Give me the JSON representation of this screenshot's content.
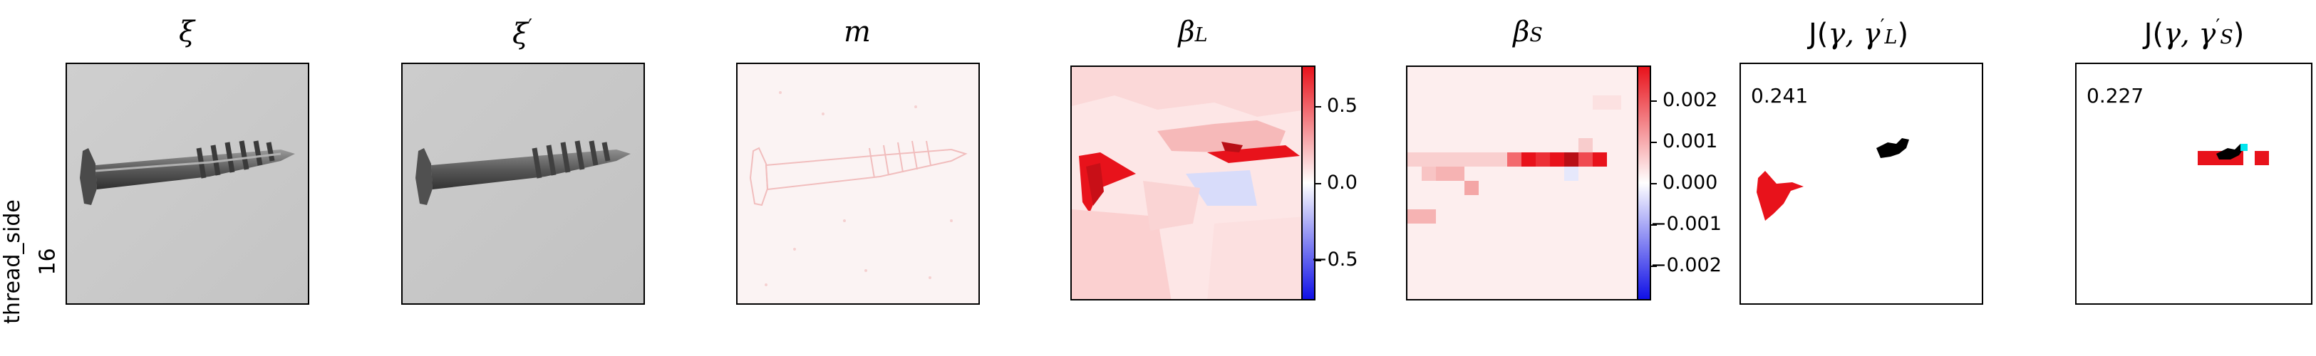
{
  "row_label": {
    "line1": "thread_side",
    "line2": "16"
  },
  "panels": {
    "xi": {
      "title": "ξ"
    },
    "xi_prime": {
      "title_base": "ξ",
      "title_sup": "′"
    },
    "m": {
      "title": "m"
    },
    "beta_L": {
      "title_base": "β",
      "title_sub": "L"
    },
    "beta_S": {
      "title_base": "β",
      "title_sub": "S"
    },
    "J_L": {
      "title_fn": "J(",
      "title_args": "γ, γ",
      "title_sup": "′",
      "title_sub": "L",
      "title_close": ")",
      "score": "0.241"
    },
    "J_S": {
      "title_fn": "J(",
      "title_args": "γ, γ",
      "title_sup": "′",
      "title_sub": "S",
      "title_close": ")",
      "score": "0.227"
    }
  },
  "colorbars": {
    "beta_L": {
      "ticks": [
        "0.5",
        "0.0",
        "−0.5"
      ]
    },
    "beta_S": {
      "ticks": [
        "0.002",
        "0.001",
        "0.000",
        "−0.001",
        "−0.002"
      ]
    }
  },
  "colors": {
    "positive": "#e8121b",
    "negative": "#1010e6",
    "neutral": "#ffffff",
    "overlap_black": "#000000",
    "cyan": "#00e5ee"
  }
}
